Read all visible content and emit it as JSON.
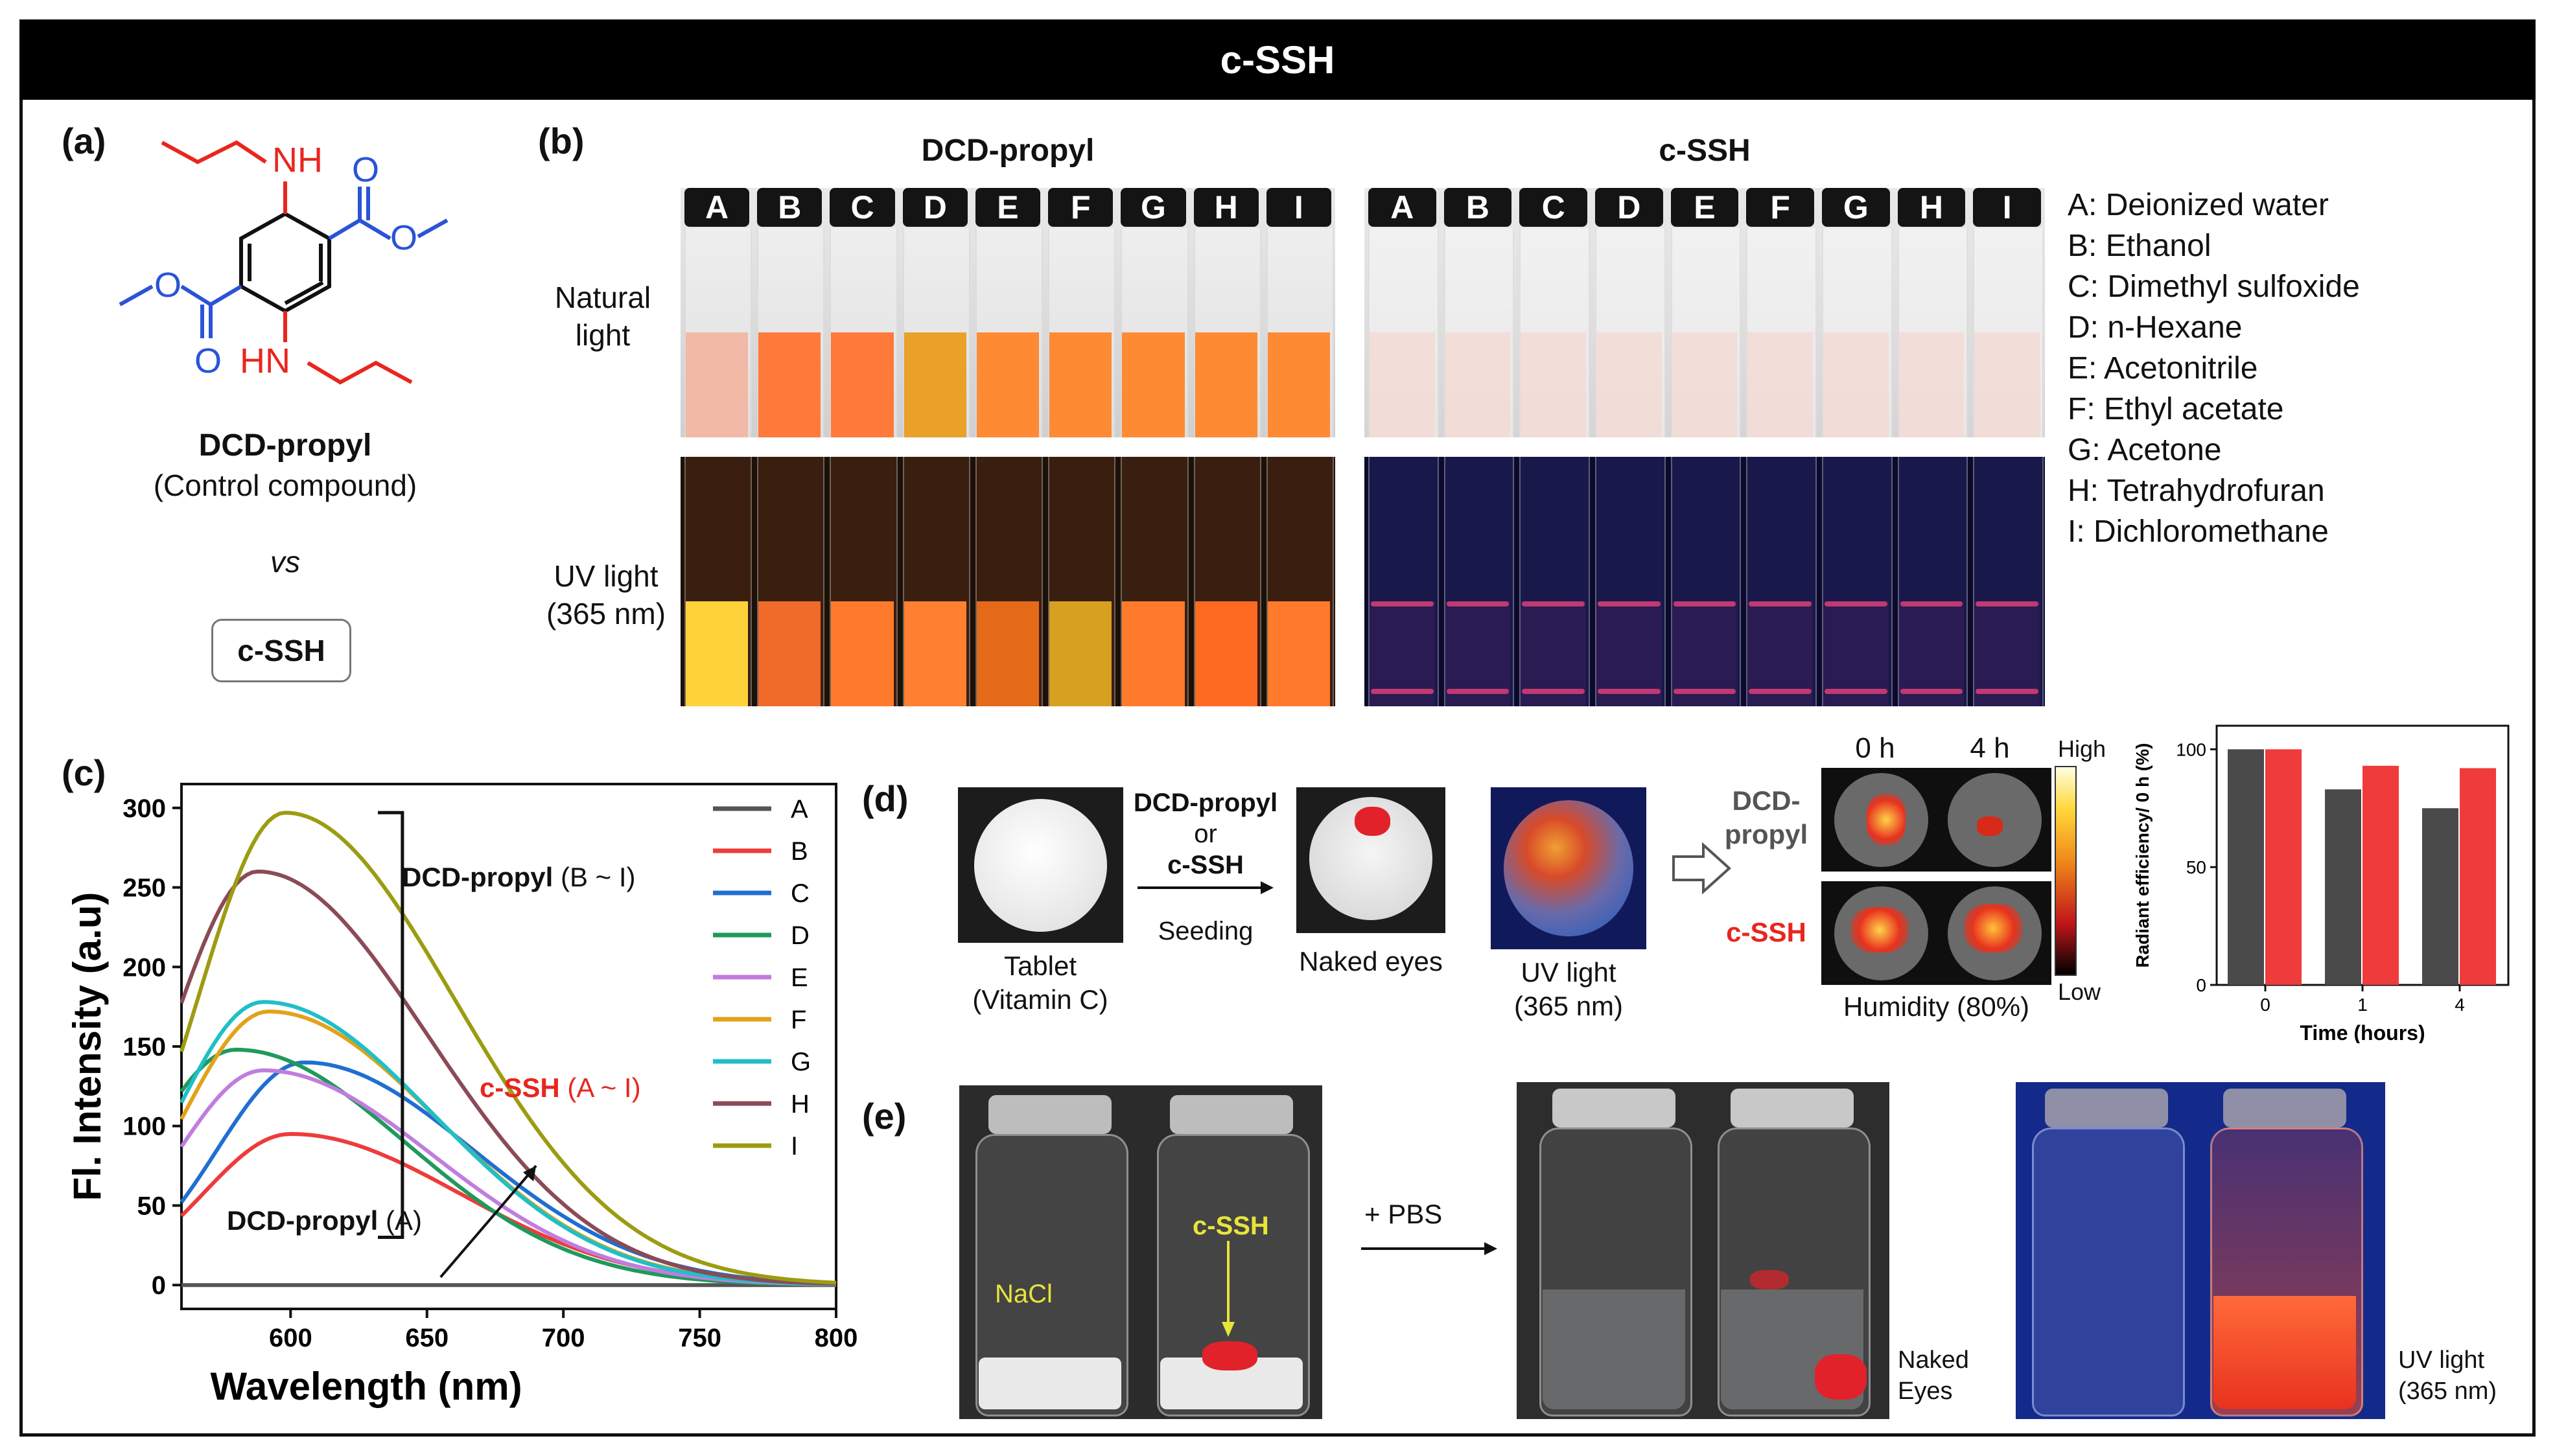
{
  "title": "c-SSH",
  "panels": {
    "a": {
      "label": "(a)",
      "compound_name": "DCD-propyl",
      "compound_note": "(Control compound)",
      "vs": "vs",
      "comparison": "c-SSH",
      "structure_labels": {
        "nh_top": "NH",
        "o1": "O",
        "o2": "O",
        "o3": "O",
        "o4": "O",
        "hn_bottom": "HN"
      },
      "colors": {
        "amine": "#e8261f",
        "ester": "#2a53d6",
        "core": "#111111"
      }
    },
    "b": {
      "label": "(b)",
      "left_title": "DCD-propyl",
      "right_title": "c-SSH",
      "row_natural": [
        "Natural",
        "light"
      ],
      "row_uv": [
        "UV light",
        "(365 nm)"
      ],
      "vial_letters": [
        "A",
        "B",
        "C",
        "D",
        "E",
        "F",
        "G",
        "H",
        "I"
      ],
      "solvents": [
        "A: Deionized water",
        "B: Ethanol",
        "C: Dimethyl sulfoxide",
        "D: n-Hexane",
        "E: Acetonitrile",
        "F: Ethyl acetate",
        "G: Acetone",
        "H: Tetrahydrofuran",
        "I: Dichloromethane"
      ]
    },
    "c": {
      "label": "(c)",
      "bracket_label_bold": "DCD-propyl",
      "bracket_label_rest": " (B ~ I)",
      "cssh_label_bold": "c-SSH",
      "cssh_label_rest": " (A ~ I)",
      "dcd_a_bold": "DCD-propyl",
      "dcd_a_rest": " (A)"
    },
    "d": {
      "label": "(d)",
      "tablet_caption": [
        "Tablet",
        "(Vitamin C)"
      ],
      "arrow_top": [
        "DCD-propyl",
        "or",
        "c-SSH"
      ],
      "arrow_bottom": "Seeding",
      "naked_eyes": "Naked eyes",
      "uv_caption": [
        "UV light",
        "(365 nm)"
      ],
      "time_labels": [
        "0 h",
        "4 h"
      ],
      "row_labels": [
        "DCD-",
        "propyl",
        "c-SSH"
      ],
      "humidity": "Humidity (80%)",
      "scale_high": "High",
      "scale_low": "Low"
    },
    "e": {
      "label": "(e)",
      "nacl": "NaCl",
      "cssh": "c-SSH",
      "pbs": "+ PBS",
      "naked": [
        "Naked",
        "Eyes"
      ],
      "uv": [
        "UV light",
        "(365 nm)"
      ]
    }
  },
  "chart_data": [
    {
      "type": "line",
      "panel": "c",
      "xlabel": "Wavelength (nm)",
      "ylabel": "Fl. Intensity (a.u)",
      "xlim": [
        560,
        800
      ],
      "ylim": [
        -15,
        315
      ],
      "xticks": [
        600,
        650,
        700,
        750,
        800
      ],
      "yticks": [
        0,
        50,
        100,
        150,
        200,
        250,
        300
      ],
      "series": [
        {
          "name": "A",
          "color": "#555555",
          "peak_x": 600,
          "peak_y": 0
        },
        {
          "name": "B",
          "color": "#ee3b3b",
          "peak_x": 600,
          "peak_y": 95
        },
        {
          "name": "C",
          "color": "#1f6fd1",
          "peak_x": 605,
          "peak_y": 140
        },
        {
          "name": "D",
          "color": "#1f9a5c",
          "peak_x": 580,
          "peak_y": 148
        },
        {
          "name": "E",
          "color": "#c07ddf",
          "peak_x": 590,
          "peak_y": 135
        },
        {
          "name": "F",
          "color": "#e2a21a",
          "peak_x": 592,
          "peak_y": 172
        },
        {
          "name": "G",
          "color": "#1fbfc8",
          "peak_x": 590,
          "peak_y": 178
        },
        {
          "name": "H",
          "color": "#8a4b57",
          "peak_x": 588,
          "peak_y": 260
        },
        {
          "name": "I",
          "color": "#9c9c12",
          "peak_x": 598,
          "peak_y": 297
        }
      ]
    },
    {
      "type": "bar",
      "panel": "d",
      "ylabel": "Radiant efficiency/ 0 h (%)",
      "xlabel": "Time (hours)",
      "categories": [
        "0",
        "1",
        "4"
      ],
      "ylim": [
        0,
        110
      ],
      "yticks": [
        0,
        50,
        100
      ],
      "series": [
        {
          "name": "DCD-propyl",
          "color": "#4a4a4a",
          "values": [
            100,
            83,
            75
          ]
        },
        {
          "name": "c-SSH",
          "color": "#ef3b3b",
          "values": [
            100,
            93,
            92
          ]
        }
      ]
    }
  ]
}
